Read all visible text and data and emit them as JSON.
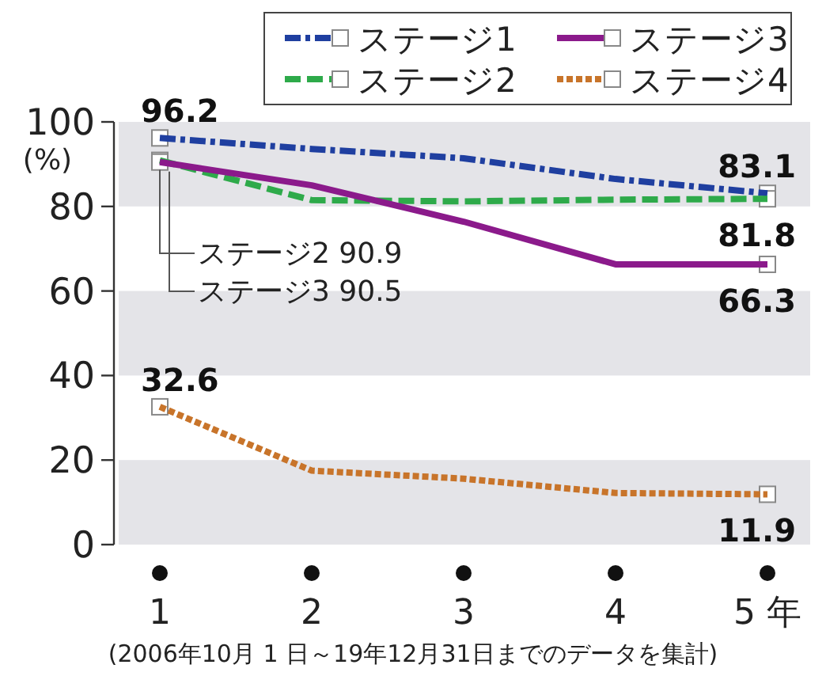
{
  "chart_data": {
    "type": "line",
    "categories": [
      "1",
      "2",
      "3",
      "4",
      "5 年"
    ],
    "ylabel": "(%)",
    "ylim": [
      0,
      100
    ],
    "yticks": [
      0,
      20,
      40,
      60,
      80,
      100
    ],
    "grid": false,
    "legend": "top right",
    "series": [
      {
        "name": "ステージ1",
        "color": "#1f3fa0",
        "line_style": "dashdot",
        "values": [
          96.2,
          93.6,
          91.4,
          86.5,
          83.1
        ],
        "value_labels": [
          "96.2",
          null,
          null,
          null,
          "83.1"
        ]
      },
      {
        "name": "ステージ2",
        "color": "#2eaa4a",
        "line_style": "dashed",
        "values": [
          90.9,
          81.5,
          81.2,
          81.6,
          81.8
        ],
        "value_labels": [
          null,
          null,
          null,
          null,
          "81.8"
        ]
      },
      {
        "name": "ステージ3",
        "color": "#8b1a8b",
        "line_style": "solid",
        "values": [
          90.5,
          85.0,
          76.4,
          66.3,
          66.3
        ],
        "value_labels": [
          null,
          null,
          null,
          null,
          "66.3"
        ]
      },
      {
        "name": "ステージ4",
        "color": "#c8742a",
        "line_style": "dotted",
        "values": [
          32.6,
          17.5,
          15.6,
          12.2,
          11.9
        ],
        "value_labels": [
          "32.6",
          null,
          null,
          null,
          "11.9"
        ]
      }
    ],
    "bands": [
      {
        "axis": "y",
        "from": 0,
        "to": 20,
        "color": "#e4e4e8"
      },
      {
        "axis": "y",
        "from": 40,
        "to": 60,
        "color": "#e4e4e8"
      },
      {
        "axis": "y",
        "from": 80,
        "to": 100,
        "color": "#e4e4e8"
      }
    ],
    "annotations": [
      {
        "text": "ステージ2 90.9",
        "x": "1",
        "y": 90.9
      },
      {
        "text": "ステージ3 90.5",
        "x": "1",
        "y": 90.5
      },
      "(2006年10月 1 日～19年12月31日までのデータを集計)"
    ]
  }
}
